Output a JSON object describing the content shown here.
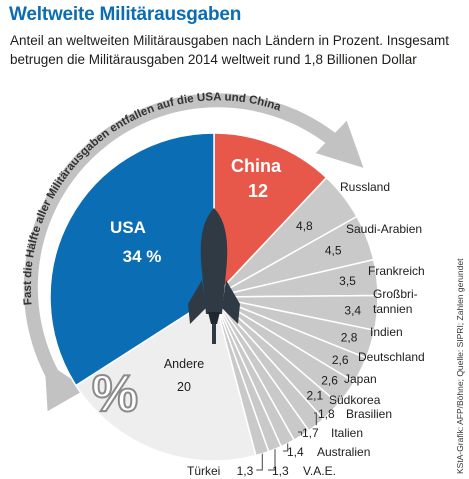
{
  "colors": {
    "title": "#0b6db4",
    "usa": "#0b6db4",
    "china": "#e8584a",
    "others": "#c9c9c9",
    "andere": "#eeeeee",
    "arrow": "#c2c2c2"
  },
  "icons": {
    "rocket": "rocket-icon",
    "percent": "percent-icon"
  },
  "header": {
    "title": "Weltweite Militärausgaben",
    "subtitle": "Anteil an weltweiten Militärausgaben nach Ländern in Prozent. Insgesamt betrugen die Militärausgaben 2014 weltweit rund 1,8 Billionen Dollar"
  },
  "arrow_text": "Fast die Hälfte aller Militärausgaben entfallen auf die USA und China",
  "percent_symbol": "%",
  "source": "KStA-Grafik: AFP/Böhne; Quelle: SIPRI; Zahlen gerundet",
  "chart_data": {
    "type": "pie",
    "unit": "%",
    "year": 2014,
    "slices": [
      {
        "label": "USA",
        "value": 34,
        "value_label": "34 %"
      },
      {
        "label": "China",
        "value": 12,
        "value_label": "12"
      },
      {
        "label": "Russland",
        "value": 4.8,
        "value_label": "4,8"
      },
      {
        "label": "Saudi-Arabien",
        "value": 4.5,
        "value_label": "4,5"
      },
      {
        "label": "Frankreich",
        "value": 3.5,
        "value_label": "3,5"
      },
      {
        "label": "Großbritannien",
        "value": 3.4,
        "value_label": "3,4",
        "label_lines": [
          "Großbri-",
          "tannien"
        ]
      },
      {
        "label": "Indien",
        "value": 2.8,
        "value_label": "2,8"
      },
      {
        "label": "Deutschland",
        "value": 2.6,
        "value_label": "2,6"
      },
      {
        "label": "Japan",
        "value": 2.6,
        "value_label": "2,6"
      },
      {
        "label": "Südkorea",
        "value": 2.1,
        "value_label": "2,1"
      },
      {
        "label": "Brasilien",
        "value": 1.8,
        "value_label": "1,8"
      },
      {
        "label": "Italien",
        "value": 1.7,
        "value_label": "1,7"
      },
      {
        "label": "Australien",
        "value": 1.4,
        "value_label": "1,4"
      },
      {
        "label": "V.A.E.",
        "value": 1.3,
        "value_label": "1,3"
      },
      {
        "label": "Türkei",
        "value": 1.3,
        "value_label": "1,3"
      },
      {
        "label": "Andere",
        "value": 20,
        "value_label": "20"
      }
    ]
  }
}
